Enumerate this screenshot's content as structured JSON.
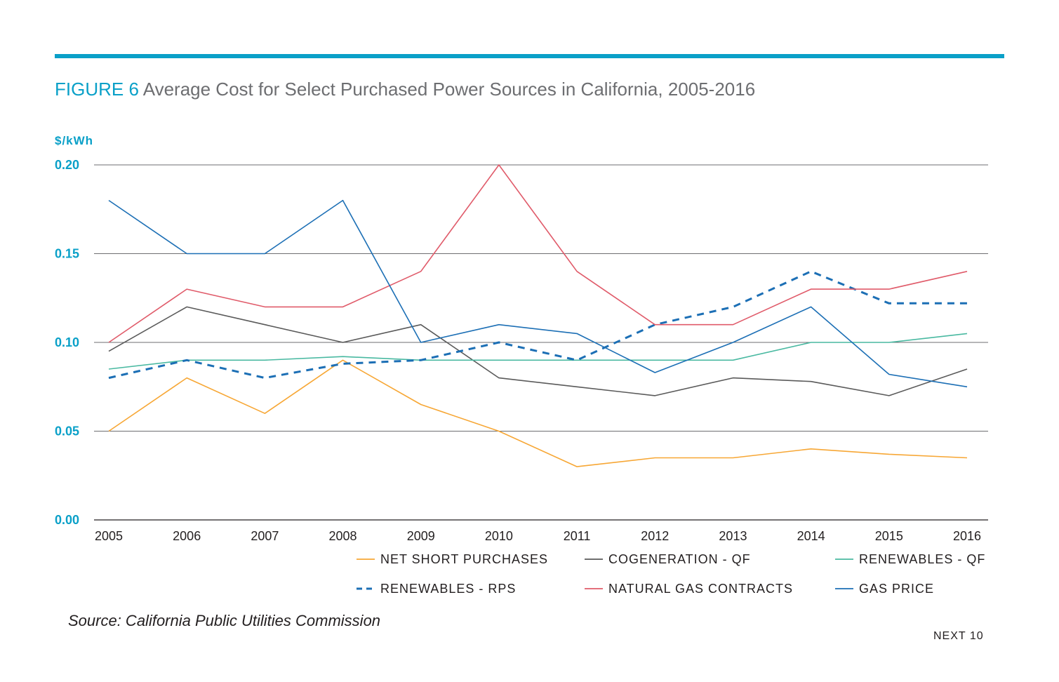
{
  "header": {
    "figure_label": "FIGURE 6",
    "title": " Average Cost for Select Purchased Power Sources in California, 2005-2016"
  },
  "footer": {
    "source": "Source: California Public Utilities Commission",
    "brand": "NEXT 10"
  },
  "colors": {
    "accent": "#0aa0c8",
    "net_short": "#f7a735",
    "cogeneration": "#5a5a5a",
    "renewables_qf": "#49b9a1",
    "renewables_rps": "#1c6fb5",
    "natural_gas": "#e05b6a",
    "gas_price": "#1c6fb5"
  },
  "chart_data": {
    "type": "line",
    "title": "Average Cost for Select Purchased Power Sources in California, 2005-2016",
    "ylabel": "$/kWh",
    "xlabel": "",
    "ylim": [
      0,
      0.2
    ],
    "yticks": [
      "0.00",
      "0.05",
      "0.10",
      "0.15",
      "0.20"
    ],
    "x": [
      "2005",
      "2006",
      "2007",
      "2008",
      "2009",
      "2010",
      "2011",
      "2012",
      "2013",
      "2014",
      "2015",
      "2016"
    ],
    "grid": "horizontal",
    "legend_position": "bottom",
    "series": [
      {
        "name": "NET SHORT PURCHASES",
        "color": "#f7a735",
        "dash": false,
        "values": [
          0.05,
          0.08,
          0.06,
          0.09,
          0.065,
          0.05,
          0.03,
          0.035,
          0.035,
          0.04,
          0.037,
          0.035
        ]
      },
      {
        "name": "COGENERATION - QF",
        "color": "#5a5a5a",
        "dash": false,
        "values": [
          0.095,
          0.12,
          0.11,
          0.1,
          0.11,
          0.08,
          0.075,
          0.07,
          0.08,
          0.078,
          0.07,
          0.085
        ]
      },
      {
        "name": "RENEWABLES - QF",
        "color": "#49b9a1",
        "dash": false,
        "values": [
          0.085,
          0.09,
          0.09,
          0.092,
          0.09,
          0.09,
          0.09,
          0.09,
          0.09,
          0.1,
          0.1,
          0.105
        ]
      },
      {
        "name": "RENEWABLES - RPS",
        "color": "#1c6fb5",
        "dash": true,
        "values": [
          0.08,
          0.09,
          0.08,
          0.088,
          0.09,
          0.1,
          0.09,
          0.11,
          0.12,
          0.14,
          0.122,
          0.122
        ]
      },
      {
        "name": "NATURAL GAS CONTRACTS",
        "color": "#e05b6a",
        "dash": false,
        "values": [
          0.1,
          0.13,
          0.12,
          0.12,
          0.14,
          0.2,
          0.14,
          0.11,
          0.11,
          0.13,
          0.13,
          0.14
        ]
      },
      {
        "name": "GAS PRICE",
        "color": "#1c6fb5",
        "dash": false,
        "values": [
          0.18,
          0.15,
          0.15,
          0.18,
          0.1,
          0.11,
          0.105,
          0.083,
          0.1,
          0.12,
          0.082,
          0.075
        ]
      }
    ]
  }
}
